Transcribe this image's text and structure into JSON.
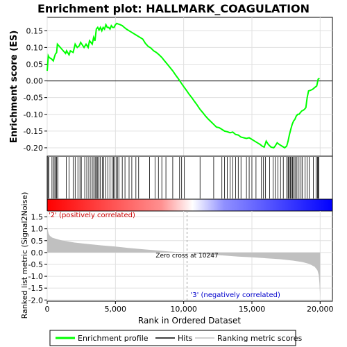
{
  "chart_data": {
    "type": "line",
    "title": "Enrichment plot: HALLMARK_COAGULATION",
    "xlabel": "Rank in Ordered Dataset",
    "x_ticks": [
      0,
      5000,
      10000,
      15000,
      20000
    ],
    "x_tick_labels": [
      "0",
      "5,000",
      "10,000",
      "15,000",
      "20,000"
    ],
    "xlim": [
      0,
      20900
    ],
    "panels": {
      "enrichment": {
        "ylabel": "Enrichment score (ES)",
        "ylim": [
          -0.225,
          0.19
        ],
        "y_ticks": [
          -0.2,
          -0.15,
          -0.1,
          -0.05,
          0.0,
          0.05,
          0.1,
          0.15
        ],
        "y_tick_labels": [
          "-0.20",
          "-0.15",
          "-0.10",
          "-0.05",
          "0.00",
          "0.05",
          "0.10",
          "0.15"
        ],
        "series": [
          {
            "name": "Enrichment profile",
            "color": "#00ff00",
            "x": [
              0,
              80,
              150,
              330,
              450,
              520,
              600,
              690,
              750,
              1350,
              1420,
              1600,
              1700,
              1900,
              2050,
              2200,
              2350,
              2450,
              2700,
              2850,
              3000,
              3100,
              3300,
              3400,
              3500,
              3600,
              3700,
              3800,
              3900,
              4000,
              4100,
              4200,
              4300,
              4400,
              4500,
              4600,
              4700,
              4800,
              4900,
              5000,
              5100,
              5200,
              5350,
              5500,
              5650,
              5800,
              6000,
              6200,
              6400,
              6600,
              6800,
              7000,
              7200,
              7400,
              7600,
              7800,
              8000,
              8200,
              8400,
              8600,
              8800,
              9000,
              9200,
              9400,
              9600,
              9800,
              10000,
              10200,
              10400,
              10600,
              10800,
              11000,
              11200,
              11400,
              11600,
              11800,
              12000,
              12200,
              12400,
              12600,
              12800,
              13000,
              13200,
              13400,
              13600,
              13800,
              14000,
              14200,
              14400,
              14600,
              14800,
              15000,
              15200,
              15400,
              15600,
              15750,
              15900,
              16050,
              16200,
              16400,
              16600,
              16700,
              16850,
              17000,
              17200,
              17400,
              17550,
              17650,
              17750,
              17850,
              17950,
              18050,
              18150,
              18250,
              18350,
              18450,
              18550,
              18650,
              18750,
              18850,
              18950,
              19050,
              19150,
              19300,
              19450,
              19600,
              19750,
              19850,
              19950
            ],
            "values": [
              0.03,
              0.075,
              0.07,
              0.065,
              0.06,
              0.07,
              0.08,
              0.085,
              0.11,
              0.082,
              0.09,
              0.078,
              0.09,
              0.085,
              0.11,
              0.1,
              0.105,
              0.115,
              0.1,
              0.11,
              0.1,
              0.12,
              0.11,
              0.13,
              0.12,
              0.155,
              0.16,
              0.152,
              0.16,
              0.15,
              0.16,
              0.155,
              0.168,
              0.16,
              0.16,
              0.155,
              0.165,
              0.16,
              0.16,
              0.168,
              0.172,
              0.17,
              0.168,
              0.165,
              0.16,
              0.155,
              0.15,
              0.145,
              0.14,
              0.135,
              0.13,
              0.125,
              0.112,
              0.103,
              0.098,
              0.09,
              0.085,
              0.078,
              0.07,
              0.06,
              0.05,
              0.04,
              0.03,
              0.018,
              0.007,
              -0.005,
              -0.017,
              -0.028,
              -0.04,
              -0.05,
              -0.062,
              -0.073,
              -0.085,
              -0.095,
              -0.105,
              -0.114,
              -0.122,
              -0.13,
              -0.138,
              -0.14,
              -0.145,
              -0.15,
              -0.152,
              -0.155,
              -0.153,
              -0.16,
              -0.162,
              -0.168,
              -0.17,
              -0.172,
              -0.17,
              -0.175,
              -0.18,
              -0.185,
              -0.19,
              -0.195,
              -0.198,
              -0.18,
              -0.19,
              -0.198,
              -0.2,
              -0.195,
              -0.185,
              -0.19,
              -0.195,
              -0.2,
              -0.195,
              -0.18,
              -0.16,
              -0.145,
              -0.13,
              -0.12,
              -0.115,
              -0.105,
              -0.1,
              -0.1,
              -0.095,
              -0.09,
              -0.088,
              -0.085,
              -0.08,
              -0.05,
              -0.03,
              -0.028,
              -0.025,
              -0.02,
              -0.015,
              0.005,
              0.008
            ]
          }
        ]
      },
      "hits": {
        "legend_name": "Hits",
        "gene_ranks": [
          60,
          130,
          350,
          470,
          560,
          650,
          700,
          780,
          1400,
          1600,
          1900,
          2050,
          2250,
          2400,
          2500,
          2750,
          2900,
          3050,
          3200,
          3350,
          3450,
          3550,
          3620,
          3700,
          3800,
          3900,
          4050,
          4150,
          4300,
          4450,
          4600,
          4750,
          4850,
          4950,
          5050,
          5150,
          5250,
          5500,
          5700,
          6000,
          6200,
          6500,
          6700,
          7500,
          7900,
          8150,
          8400,
          8700,
          9200,
          9700,
          9850,
          10050,
          11200,
          12200,
          12800,
          13000,
          13200,
          13400,
          13600,
          13800,
          14000,
          14200,
          14600,
          14800,
          15000,
          15300,
          15700,
          15850,
          16000,
          16300,
          16550,
          16700,
          16900,
          17100,
          17300,
          17550,
          17650,
          17700,
          17800,
          17850,
          17950,
          18000,
          18100,
          18200,
          18300,
          18450,
          18600,
          18700,
          18900,
          19050,
          19200,
          19500,
          19700,
          19800,
          19850,
          19900
        ]
      },
      "ranking_bar": {
        "colors": [
          "#ff0000",
          "#ff9090",
          "#ffffff",
          "#9090ff",
          "#0000ff"
        ]
      },
      "ranked_metric": {
        "ylabel": "Ranked list metric (Signal2Noise)",
        "legend_name": "Ranking metric scores",
        "ylim": [
          -2.05,
          1.75
        ],
        "y_ticks": [
          -2.0,
          -1.5,
          -1.0,
          -0.5,
          0.0,
          0.5,
          1.0,
          1.5
        ],
        "y_tick_labels": [
          "-2.0",
          "-1.5",
          "-1.0",
          "-0.5",
          "0.0",
          "0.5",
          "1.0",
          "1.5"
        ],
        "x": [
          0,
          40,
          100,
          200,
          400,
          700,
          1000,
          2000,
          3000,
          4000,
          5000,
          6000,
          7000,
          8000,
          9000,
          10247,
          11000,
          12000,
          13000,
          14000,
          15000,
          16000,
          17000,
          18000,
          18700,
          19200,
          19600,
          19800,
          19900,
          19950,
          20000
        ],
        "values": [
          1.2,
          0.95,
          0.8,
          0.7,
          0.62,
          0.57,
          0.52,
          0.42,
          0.36,
          0.3,
          0.25,
          0.19,
          0.14,
          0.09,
          0.04,
          0.0,
          -0.05,
          -0.09,
          -0.13,
          -0.17,
          -0.2,
          -0.24,
          -0.28,
          -0.34,
          -0.4,
          -0.48,
          -0.6,
          -0.75,
          -0.95,
          -1.3,
          -1.9
        ],
        "zero_cross_label": "Zero cross at 10247",
        "zero_cross_x": 10247,
        "positive_label": "'2' (positively correlated)",
        "negative_label": "'3' (negatively correlated)"
      }
    },
    "legend": {
      "placement": "bottom",
      "items": [
        "Enrichment profile",
        "Hits",
        "Ranking metric scores"
      ]
    },
    "colors": {
      "profile": "#00ff00",
      "hits": "#000000",
      "metric_fill": "#c0c0c0",
      "grid": "#e0e0e0",
      "positive_label": "#cc0000",
      "negative_label": "#0000cc"
    }
  }
}
